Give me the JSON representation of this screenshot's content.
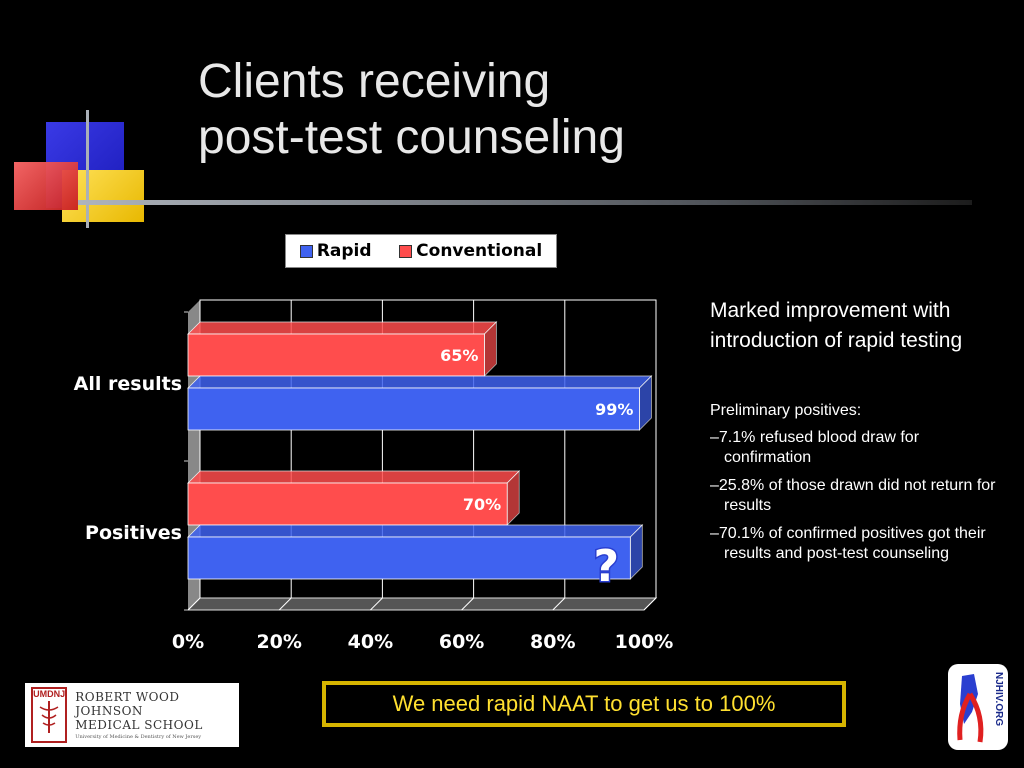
{
  "slide": {
    "title_line1": "Clients receiving",
    "title_line2": "post-test counseling"
  },
  "legend": {
    "rapid": "Rapid",
    "conventional": "Conventional"
  },
  "colors": {
    "rapid": "#3f62f0",
    "conventional": "#ff4d4d",
    "question_mark": "#2a3fd0"
  },
  "chart_data": {
    "type": "bar",
    "orientation": "horizontal",
    "categories": [
      "All results",
      "Positives"
    ],
    "series": [
      {
        "name": "Conventional",
        "values": [
          65,
          70
        ],
        "data_labels": [
          "65%",
          "70%"
        ]
      },
      {
        "name": "Rapid",
        "values": [
          99,
          97
        ],
        "data_labels": [
          "99%",
          "?"
        ]
      }
    ],
    "xlim": [
      0,
      100
    ],
    "x_ticks": [
      "0%",
      "20%",
      "40%",
      "60%",
      "80%",
      "100%"
    ],
    "grid": true,
    "legend_position": "top"
  },
  "side_text": {
    "headline": "Marked improvement with introduction of rapid testing",
    "prelim_heading": "Preliminary positives:",
    "notes": [
      "–7.1% refused blood draw for confirmation",
      "–25.8% of those drawn did not return for results",
      "–70.1% of confirmed positives got their results and post-test counseling"
    ]
  },
  "callout": "We need rapid NAAT to get us to 100%",
  "logos": {
    "rwj_seal": "UMDNJ",
    "rwj_line1": "ROBERT WOOD JOHNSON",
    "rwj_line2": "MEDICAL SCHOOL",
    "rwj_line3": "University of Medicine & Dentistry of New Jersey",
    "njhiv": "NJHIV.ORG"
  }
}
